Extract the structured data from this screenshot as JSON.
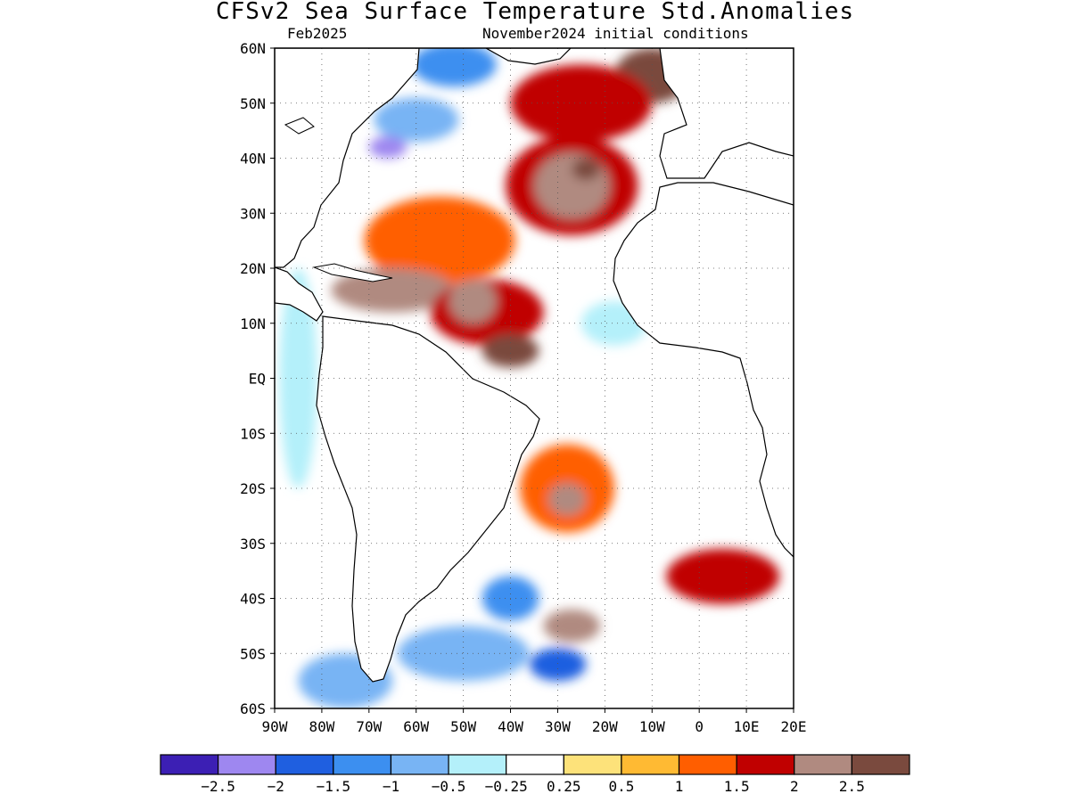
{
  "title": "CFSv2 Sea Surface Temperature Std.Anomalies",
  "subtitle_left": "Feb2025",
  "subtitle_right": "November2024 initial conditions",
  "map": {
    "region": "Atlantic Ocean",
    "lon_range": [
      -90,
      20
    ],
    "lat_range": [
      -60,
      60
    ],
    "lat_ticks": [
      {
        "value": 60,
        "label": "60N"
      },
      {
        "value": 50,
        "label": "50N"
      },
      {
        "value": 40,
        "label": "40N"
      },
      {
        "value": 30,
        "label": "30N"
      },
      {
        "value": 20,
        "label": "20N"
      },
      {
        "value": 10,
        "label": "10N"
      },
      {
        "value": 0,
        "label": "EQ"
      },
      {
        "value": -10,
        "label": "10S"
      },
      {
        "value": -20,
        "label": "20S"
      },
      {
        "value": -30,
        "label": "30S"
      },
      {
        "value": -40,
        "label": "40S"
      },
      {
        "value": -50,
        "label": "50S"
      },
      {
        "value": -60,
        "label": "60S"
      }
    ],
    "lon_ticks": [
      {
        "value": -90,
        "label": "90W"
      },
      {
        "value": -80,
        "label": "80W"
      },
      {
        "value": -70,
        "label": "70W"
      },
      {
        "value": -60,
        "label": "60W"
      },
      {
        "value": -50,
        "label": "50W"
      },
      {
        "value": -40,
        "label": "40W"
      },
      {
        "value": -30,
        "label": "30W"
      },
      {
        "value": -20,
        "label": "20W"
      },
      {
        "value": -10,
        "label": "10W"
      },
      {
        "value": 0,
        "label": "0"
      },
      {
        "value": 10,
        "label": "10E"
      },
      {
        "value": 20,
        "label": "20E"
      }
    ],
    "grid": "dotted"
  },
  "colorbar": {
    "colors": [
      "#3c1fb4",
      "#9e87f0",
      "#1f5fe0",
      "#3c8ff0",
      "#78b4f4",
      "#b4f0fa",
      "#ffffff",
      "#fde27a",
      "#ffba33",
      "#ff5e00",
      "#c00000",
      "#b08a80",
      "#7a4a3e"
    ],
    "labels": [
      "-2.5",
      "-2",
      "-1.5",
      "-1",
      "-0.5",
      "-0.25",
      "0.25",
      "0.5",
      "1",
      "1.5",
      "2",
      "2.5"
    ]
  },
  "chart_data": {
    "type": "heatmap",
    "title": "CFSv2 Sea Surface Temperature Std.Anomalies",
    "subtitle": "Feb2025 — November2024 initial conditions",
    "xlim": [
      -90,
      20
    ],
    "ylim": [
      -60,
      60
    ],
    "features": [
      {
        "lon": -10,
        "lat": 55,
        "rx": 8,
        "ry": 5,
        "level": 2.5
      },
      {
        "lon": -25,
        "lat": 50,
        "rx": 15,
        "ry": 7,
        "level": 1.5
      },
      {
        "lon": -27,
        "lat": 35,
        "rx": 14,
        "ry": 9,
        "level": 1.5
      },
      {
        "lon": -27,
        "lat": 35,
        "rx": 8,
        "ry": 6,
        "level": 2
      },
      {
        "lon": -24,
        "lat": 38,
        "rx": 3,
        "ry": 2,
        "level": 2.5
      },
      {
        "lon": -55,
        "lat": 25,
        "rx": 16,
        "ry": 8,
        "level": 1
      },
      {
        "lon": -65,
        "lat": 16,
        "rx": 13,
        "ry": 4,
        "level": 2
      },
      {
        "lon": -45,
        "lat": 12,
        "rx": 12,
        "ry": 6,
        "level": 1.5
      },
      {
        "lon": -48,
        "lat": 14,
        "rx": 5,
        "ry": 4,
        "level": 2
      },
      {
        "lon": -40,
        "lat": 5,
        "rx": 6,
        "ry": 3,
        "level": 2.5
      },
      {
        "lon": -60,
        "lat": 47,
        "rx": 9,
        "ry": 4,
        "level": -1
      },
      {
        "lon": -66,
        "lat": 42,
        "rx": 4,
        "ry": 2,
        "level": -2.5
      },
      {
        "lon": -52,
        "lat": 57,
        "rx": 9,
        "ry": 4,
        "level": -1.5
      },
      {
        "lon": -18,
        "lat": 10,
        "rx": 7,
        "ry": 4,
        "level": -0.5
      },
      {
        "lon": -28,
        "lat": -20,
        "rx": 10,
        "ry": 8,
        "level": 1
      },
      {
        "lon": -28,
        "lat": -22,
        "rx": 4,
        "ry": 3,
        "level": 2
      },
      {
        "lon": 5,
        "lat": -36,
        "rx": 12,
        "ry": 5,
        "level": 1.5
      },
      {
        "lon": -27,
        "lat": -45,
        "rx": 6,
        "ry": 3,
        "level": 2
      },
      {
        "lon": -40,
        "lat": -40,
        "rx": 6,
        "ry": 4,
        "level": -1.5
      },
      {
        "lon": -30,
        "lat": -52,
        "rx": 6,
        "ry": 3,
        "level": -2
      },
      {
        "lon": -50,
        "lat": -50,
        "rx": 14,
        "ry": 5,
        "level": -1
      },
      {
        "lon": -85,
        "lat": 0,
        "rx": 4,
        "ry": 20,
        "level": -0.5
      },
      {
        "lon": -75,
        "lat": -55,
        "rx": 10,
        "ry": 5,
        "level": -1
      }
    ]
  }
}
